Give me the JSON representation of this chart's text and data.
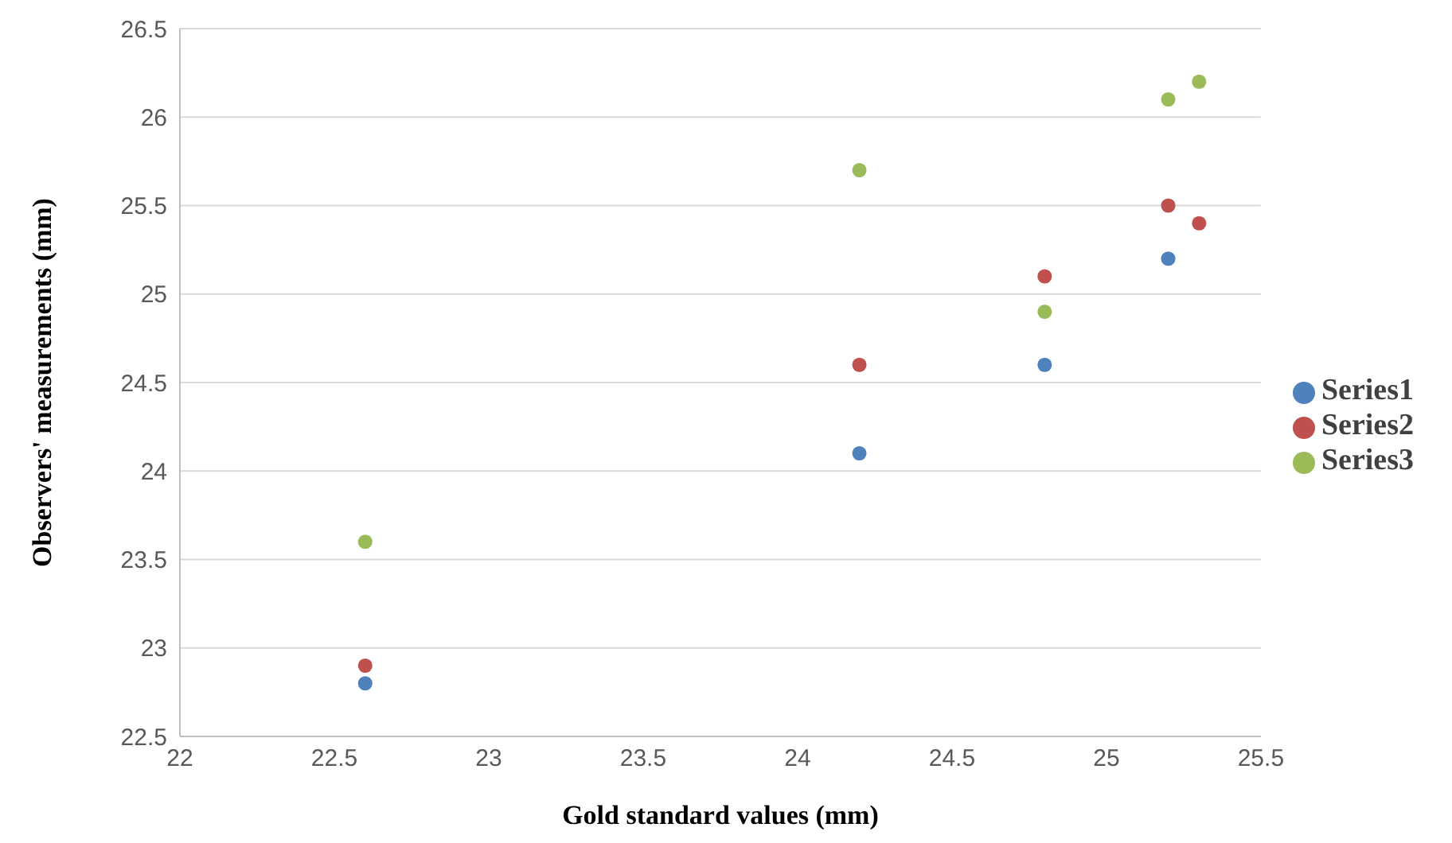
{
  "chart_data": {
    "type": "scatter",
    "xlabel": "Gold standard values (mm)",
    "ylabel": "Observers' measurements (mm)",
    "x": [
      22.6,
      24.2,
      24.8,
      25.2,
      25.3
    ],
    "series": [
      {
        "name": "Series1",
        "color": "#4f81bd",
        "values": [
          22.8,
          24.1,
          24.6,
          25.2,
          null
        ]
      },
      {
        "name": "Series2",
        "color": "#c0504d",
        "values": [
          22.9,
          24.6,
          25.1,
          25.5,
          25.4
        ]
      },
      {
        "name": "Series3",
        "color": "#9bbb59",
        "values": [
          23.6,
          25.7,
          24.9,
          26.1,
          26.2
        ]
      }
    ],
    "xlim": [
      22,
      25.5
    ],
    "xticks": [
      22,
      22.5,
      23,
      23.5,
      24,
      24.5,
      25,
      25.5
    ],
    "ylim": [
      22.5,
      26.5
    ],
    "yticks": [
      22.5,
      23,
      23.5,
      24,
      24.5,
      25,
      25.5,
      26,
      26.5
    ],
    "grid": "y",
    "legend": "right",
    "marker": "circle"
  }
}
